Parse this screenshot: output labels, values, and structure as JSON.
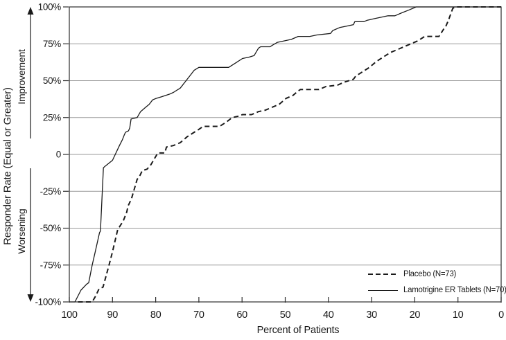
{
  "figure": {
    "xlabel": "Percent of Patients",
    "ylabel": "Responder Rate (Equal or Greater)",
    "improvement_label": "Improvement",
    "worsening_label": "Worsening"
  },
  "legend": {
    "placebo": "Placebo (N=73)",
    "lamotrigine": "Lamotrigine ER Tablets (N=70)"
  },
  "colors": {
    "background": "#ffffff",
    "line": "#1a1a1a",
    "frame": "#2b2b2b",
    "grid": "#999999",
    "text": "#1a1a1a"
  },
  "chart_data": {
    "type": "line",
    "title": "",
    "xlabel": "Percent of Patients",
    "ylabel": "Responder Rate (Equal or Greater)",
    "xlim": [
      100,
      0
    ],
    "ylim": [
      -100,
      100
    ],
    "grid": "horizontal",
    "legend_position": "lower-right",
    "x_ticks": [
      {
        "value": 100,
        "label": "100"
      },
      {
        "value": 90,
        "label": "90"
      },
      {
        "value": 80,
        "label": "80"
      },
      {
        "value": 70,
        "label": "70"
      },
      {
        "value": 60,
        "label": "60"
      },
      {
        "value": 50,
        "label": "50"
      },
      {
        "value": 40,
        "label": "40"
      },
      {
        "value": 30,
        "label": "30"
      },
      {
        "value": 20,
        "label": "20"
      },
      {
        "value": 10,
        "label": "10"
      },
      {
        "value": 0,
        "label": "0"
      }
    ],
    "y_ticks": [
      {
        "value": 100,
        "label": "100%"
      },
      {
        "value": 75,
        "label": "75%"
      },
      {
        "value": 50,
        "label": "50%"
      },
      {
        "value": 25,
        "label": "25%"
      },
      {
        "value": 0,
        "label": "0"
      },
      {
        "value": -25,
        "label": "-25%"
      },
      {
        "value": -50,
        "label": "-50%"
      },
      {
        "value": -75,
        "label": "-75%"
      },
      {
        "value": -100,
        "label": "-100%"
      }
    ],
    "series": [
      {
        "id": "placebo",
        "name": "Placebo (N=73)",
        "style": "dashed",
        "points": [
          [
            98,
            -100
          ],
          [
            94.7,
            -100
          ],
          [
            93.9,
            -96
          ],
          [
            93.1,
            -91
          ],
          [
            92.2,
            -90
          ],
          [
            90.8,
            -75
          ],
          [
            90,
            -66
          ],
          [
            88.8,
            -51
          ],
          [
            87.5,
            -45
          ],
          [
            86.7,
            -39
          ],
          [
            86.4,
            -35
          ],
          [
            85.6,
            -30
          ],
          [
            85.1,
            -25
          ],
          [
            84.8,
            -22
          ],
          [
            84.3,
            -17
          ],
          [
            83.6,
            -14
          ],
          [
            83.1,
            -11
          ],
          [
            82,
            -10
          ],
          [
            81.1,
            -7
          ],
          [
            79.9,
            -1
          ],
          [
            79.5,
            1
          ],
          [
            77.9,
            1
          ],
          [
            77.5,
            5
          ],
          [
            75.9,
            6
          ],
          [
            74.3,
            8
          ],
          [
            72.7,
            12
          ],
          [
            71.1,
            15
          ],
          [
            70,
            17
          ],
          [
            69,
            19
          ],
          [
            65.2,
            19
          ],
          [
            63.6,
            22
          ],
          [
            62.3,
            25
          ],
          [
            60.7,
            26
          ],
          [
            59.9,
            27
          ],
          [
            57.8,
            27
          ],
          [
            56.2,
            29
          ],
          [
            54.6,
            30
          ],
          [
            53,
            32
          ],
          [
            51.4,
            34
          ],
          [
            49.8,
            38
          ],
          [
            48.2,
            40
          ],
          [
            47,
            43
          ],
          [
            46.5,
            44
          ],
          [
            42.2,
            44
          ],
          [
            40.6,
            46
          ],
          [
            37.9,
            47
          ],
          [
            36.3,
            49
          ],
          [
            34.2,
            51
          ],
          [
            33.7,
            53
          ],
          [
            32.1,
            56
          ],
          [
            30.5,
            59
          ],
          [
            28.9,
            63
          ],
          [
            27.3,
            66
          ],
          [
            25.7,
            69
          ],
          [
            24.1,
            71
          ],
          [
            22.5,
            73
          ],
          [
            20.9,
            75
          ],
          [
            19.3,
            77
          ],
          [
            17.7,
            80
          ],
          [
            14.4,
            80
          ],
          [
            13.3,
            85
          ],
          [
            12.8,
            87
          ],
          [
            12.2,
            91
          ],
          [
            11.7,
            95
          ],
          [
            11.2,
            99
          ],
          [
            10.6,
            100
          ],
          [
            0,
            100
          ]
        ]
      },
      {
        "id": "lamotrigine",
        "name": "Lamotrigine ER Tablets (N=70)",
        "style": "solid",
        "points": [
          [
            100,
            -100
          ],
          [
            98.7,
            -100
          ],
          [
            97.3,
            -92
          ],
          [
            96,
            -88
          ],
          [
            95.5,
            -87
          ],
          [
            94.7,
            -75
          ],
          [
            94,
            -66
          ],
          [
            93,
            -53
          ],
          [
            92.8,
            -52
          ],
          [
            92.1,
            -9
          ],
          [
            91.7,
            -8
          ],
          [
            90,
            -4
          ],
          [
            88.4,
            6
          ],
          [
            87.7,
            10
          ],
          [
            87.3,
            13
          ],
          [
            87,
            15
          ],
          [
            86.3,
            16
          ],
          [
            86,
            18
          ],
          [
            85.7,
            24
          ],
          [
            84.3,
            25
          ],
          [
            83.5,
            29
          ],
          [
            82.3,
            32
          ],
          [
            81.5,
            34
          ],
          [
            80.7,
            37
          ],
          [
            79.9,
            38
          ],
          [
            78.7,
            39
          ],
          [
            76.7,
            41
          ],
          [
            75.9,
            42
          ],
          [
            74.3,
            45
          ],
          [
            72.7,
            51
          ],
          [
            71.9,
            54
          ],
          [
            71.1,
            57
          ],
          [
            70,
            59
          ],
          [
            63.1,
            59
          ],
          [
            61.5,
            62
          ],
          [
            59.9,
            65
          ],
          [
            58.3,
            66
          ],
          [
            57.2,
            67
          ],
          [
            56.2,
            72
          ],
          [
            55.7,
            73
          ],
          [
            53.5,
            73
          ],
          [
            53,
            74
          ],
          [
            51.8,
            76
          ],
          [
            50.2,
            77
          ],
          [
            48.6,
            78
          ],
          [
            47,
            80
          ],
          [
            44.3,
            80
          ],
          [
            42.7,
            81
          ],
          [
            39.5,
            82
          ],
          [
            39,
            84
          ],
          [
            37.4,
            86
          ],
          [
            35.8,
            87
          ],
          [
            34.2,
            88
          ],
          [
            33.9,
            90
          ],
          [
            31.8,
            90
          ],
          [
            31,
            91
          ],
          [
            29.4,
            92
          ],
          [
            27.8,
            93
          ],
          [
            26.2,
            94
          ],
          [
            24.6,
            94
          ],
          [
            23,
            96
          ],
          [
            21.3,
            98
          ],
          [
            19.7,
            100
          ],
          [
            0,
            100
          ]
        ]
      }
    ]
  }
}
